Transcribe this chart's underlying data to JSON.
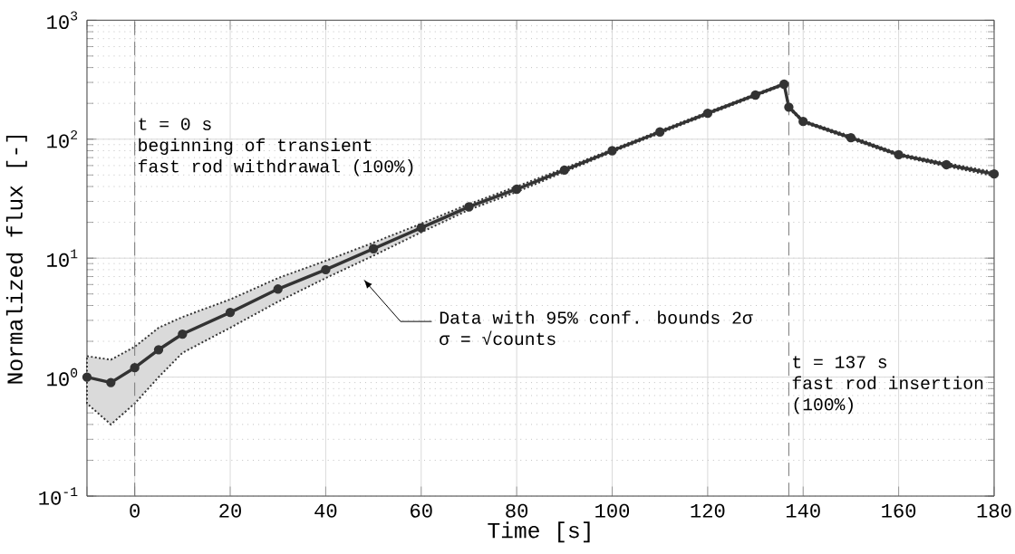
{
  "chart_data": {
    "type": "line",
    "xlabel": "Time [s]",
    "ylabel": "Normalized flux [-]",
    "xlim": [
      -10,
      180
    ],
    "xticks": [
      {
        "value": -10,
        "label": null
      },
      0,
      20,
      40,
      60,
      80,
      100,
      120,
      140,
      160,
      180
    ],
    "ylim": [
      0.1,
      1000
    ],
    "yticks": [
      {
        "value": 0.1,
        "label": "10$^{-1}$"
      },
      {
        "value": 1,
        "label": "10$^{0}$"
      },
      {
        "value": 10,
        "label": "10$^{1}$"
      },
      {
        "value": 100,
        "label": "10$^{2}$"
      },
      {
        "value": 1000,
        "label": "10$^{3}$"
      }
    ],
    "log": "y",
    "grid": true,
    "marker": "circle",
    "line_style": "solid",
    "x": [
      -10,
      -5,
      0,
      5,
      10,
      20,
      30,
      40,
      50,
      60,
      70,
      80,
      90,
      100,
      110,
      120,
      130,
      136,
      137,
      140,
      150,
      160,
      170,
      180
    ],
    "series": [
      {
        "color": "#333333",
        "values": [
          1.0,
          0.9,
          1.2,
          1.7,
          2.3,
          3.5,
          5.5,
          8,
          12,
          18,
          27,
          38,
          55,
          80,
          115,
          165,
          235,
          290,
          186,
          141,
          103,
          74,
          61,
          51
        ],
        "lower": [
          0.6,
          0.4,
          0.6,
          1.0,
          1.6,
          2.6,
          4.3,
          6.8,
          10.5,
          16.5,
          25.5,
          36,
          53,
          78,
          112,
          161,
          230,
          285,
          182,
          138,
          100,
          72,
          59,
          49
        ],
        "upper": [
          1.5,
          1.4,
          1.8,
          2.6,
          3.2,
          4.5,
          6.8,
          9.5,
          13.5,
          19.5,
          28.5,
          40,
          57,
          82,
          118,
          169,
          240,
          295,
          190,
          144,
          106,
          76,
          63,
          53
        ]
      }
    ],
    "ref_lines": [
      {
        "axis": "x",
        "value": 0,
        "label": "t = 0 s",
        "color": "#777777",
        "line_style": "dashed"
      },
      {
        "axis": "x",
        "value": 137,
        "label": "t = 137 s",
        "color": "#777777",
        "line_style": "dashed"
      }
    ],
    "annotations": [
      "beginning of transient",
      "fast rod withdrawal (100%)",
      "fast rod insertion",
      "(100%)",
      "Data with 95% conf. bounds 2σ",
      "σ = √counts"
    ]
  }
}
